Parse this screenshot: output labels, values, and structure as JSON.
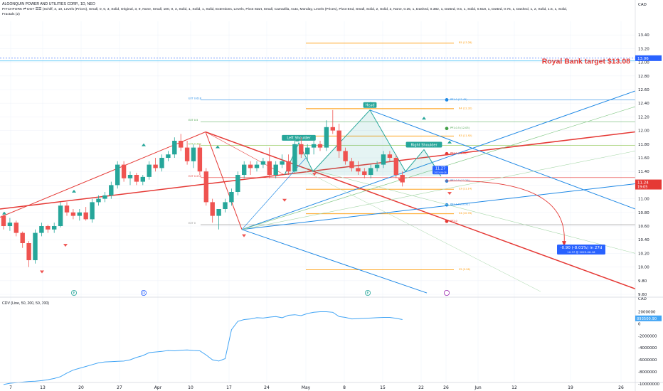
{
  "header": {
    "title": "ALGONQUIN POWER AND UTILITIES CORP., 1D, NEO",
    "indicator_line1": "PITCHFORK ⇄ DGT ☰☰ (Schiff, 3, 10, Levels (Prices), Small, 0, 0, 3, Solid, Original, 3, 9, None, Small, 100, 0, 3, Solid, 1, Solid, 1, Solid, Extentions, Levels, Pivot Start, Small, Camarilla, Auto, Monday, Levels (Prices), Pivot End, Small, Solid, 2, Solid, 2, None, 0.25, 1, Dashed, 0.382, 1, Dotted, 0.5, 1, Solid, 0.618, 1, Dotted, 0.75, 1, Dashed, 1, 2, Solid, 1.5, 1, Solid,",
    "indicator_line2": "Fractals (2)",
    "currency": "CAD",
    "sub_currency": "CAD"
  },
  "annotations": {
    "target_text": "Royal Bank target $13.08",
    "target_price_tag": "13.06",
    "last_price_tag": "11.24",
    "last_price_countdown": "19:05",
    "cursor_price": "11.27",
    "cursor_date": "2023-06-26",
    "measure_line1": "-0.90 (-8.01%) in 27d",
    "measure_line2": "10.37 @ 2023-06-16",
    "cdv_price_tag": "893500.90",
    "pattern_labels": [
      "Left Shoulder",
      "Head",
      "Right Shoulder"
    ],
    "event_markers": [
      "E",
      "D",
      "E"
    ]
  },
  "level_labels": [
    "EXT 0.618",
    "EXT 0.5",
    "EXT 0.382",
    "EXT 0.236",
    "EXT 0",
    "R5 (13.28)",
    "R4 (12.32)",
    "R3 (11.92)",
    "S3 (11.14)",
    "S4 (10.78)",
    "S5 (9.96)",
    "PP1.0 (12.45)",
    "PP1.0.5 (12.03)",
    "PP1.0 (11.66)",
    "PP1.0.5 (11.26)",
    "PP1.1.0 (10.91)",
    "PP2.0"
  ],
  "sub_pane": {
    "label": "CDV (Line, 50, 200, 50, 200)"
  },
  "chart_data": [
    {
      "type": "candlestick",
      "title": "ALGONQUIN POWER AND UTILITIES CORP., 1D, NEO",
      "ylabel": "CAD",
      "ylim": [
        9.6,
        13.6
      ],
      "y_ticks": [
        9.6,
        9.8,
        10.0,
        10.2,
        10.4,
        10.6,
        10.8,
        11.0,
        11.2,
        11.4,
        11.6,
        11.8,
        12.0,
        12.2,
        12.4,
        12.6,
        12.8,
        13.0,
        13.2,
        13.4
      ],
      "x_ticks": [
        "7",
        "13",
        "20",
        "27",
        "Apr",
        "10",
        "17",
        "24",
        "May",
        "8",
        "15",
        "22",
        "26",
        "Jun",
        "12",
        "19",
        "26"
      ],
      "candles": [
        [
          10.75,
          10.8,
          10.55,
          10.6
        ],
        [
          10.6,
          10.72,
          10.53,
          10.65
        ],
        [
          10.65,
          10.68,
          10.45,
          10.5
        ],
        [
          10.5,
          10.52,
          10.28,
          10.35
        ],
        [
          10.35,
          10.38,
          10.0,
          10.1
        ],
        [
          10.1,
          10.55,
          10.05,
          10.5
        ],
        [
          10.5,
          10.65,
          10.45,
          10.6
        ],
        [
          10.6,
          10.62,
          10.5,
          10.55
        ],
        [
          10.55,
          10.65,
          10.5,
          10.6
        ],
        [
          10.6,
          10.95,
          10.58,
          10.9
        ],
        [
          10.9,
          10.95,
          10.75,
          10.8
        ],
        [
          10.8,
          10.85,
          10.7,
          10.75
        ],
        [
          10.75,
          10.85,
          10.68,
          10.8
        ],
        [
          10.8,
          10.88,
          10.68,
          10.7
        ],
        [
          10.7,
          11.0,
          10.65,
          10.95
        ],
        [
          10.95,
          11.05,
          10.9,
          11.0
        ],
        [
          11.0,
          11.1,
          10.95,
          11.05
        ],
        [
          11.05,
          11.25,
          11.0,
          11.2
        ],
        [
          11.2,
          11.55,
          11.15,
          11.5
        ],
        [
          11.5,
          11.55,
          11.25,
          11.3
        ],
        [
          11.3,
          11.4,
          11.2,
          11.35
        ],
        [
          11.35,
          11.38,
          11.2,
          11.25
        ],
        [
          11.25,
          11.35,
          11.2,
          11.32
        ],
        [
          11.32,
          11.55,
          11.28,
          11.5
        ],
        [
          11.5,
          11.6,
          11.4,
          11.45
        ],
        [
          11.45,
          11.65,
          11.4,
          11.6
        ],
        [
          11.6,
          11.7,
          11.55,
          11.65
        ],
        [
          11.65,
          11.9,
          11.6,
          11.85
        ],
        [
          11.85,
          11.95,
          11.7,
          11.75
        ],
        [
          11.75,
          11.85,
          11.5,
          11.55
        ],
        [
          11.55,
          11.8,
          11.45,
          11.75
        ],
        [
          11.75,
          11.8,
          11.35,
          11.4
        ],
        [
          11.4,
          11.45,
          10.9,
          10.95
        ],
        [
          10.95,
          11.0,
          10.65,
          10.75
        ],
        [
          10.75,
          10.85,
          10.55,
          10.85
        ],
        [
          10.85,
          11.0,
          10.8,
          10.95
        ],
        [
          10.95,
          11.15,
          10.9,
          11.1
        ],
        [
          11.1,
          11.4,
          11.05,
          11.35
        ],
        [
          11.35,
          11.55,
          11.3,
          11.5
        ],
        [
          11.5,
          11.55,
          11.35,
          11.45
        ],
        [
          11.45,
          11.55,
          11.4,
          11.5
        ],
        [
          11.5,
          11.6,
          11.45,
          11.55
        ],
        [
          11.55,
          11.75,
          11.3,
          11.35
        ],
        [
          11.35,
          11.55,
          11.3,
          11.5
        ],
        [
          11.5,
          11.65,
          11.45,
          11.55
        ],
        [
          11.55,
          11.65,
          11.35,
          11.4
        ],
        [
          11.4,
          11.85,
          11.38,
          11.8
        ],
        [
          11.8,
          11.9,
          11.6,
          11.65
        ],
        [
          11.65,
          11.8,
          11.55,
          11.75
        ],
        [
          11.75,
          11.85,
          11.65,
          11.8
        ],
        [
          11.8,
          11.85,
          11.7,
          11.75
        ],
        [
          11.75,
          12.15,
          11.7,
          12.05
        ],
        [
          12.05,
          12.3,
          11.95,
          12.0
        ],
        [
          12.0,
          12.1,
          11.6,
          11.7
        ],
        [
          11.7,
          11.75,
          11.5,
          11.55
        ],
        [
          11.55,
          11.6,
          11.4,
          11.45
        ],
        [
          11.45,
          11.55,
          11.35,
          11.4
        ],
        [
          11.4,
          11.45,
          11.3,
          11.35
        ],
        [
          11.35,
          11.5,
          11.3,
          11.45
        ],
        [
          11.45,
          11.55,
          11.4,
          11.5
        ],
        [
          11.5,
          11.7,
          11.45,
          11.65
        ],
        [
          11.65,
          11.7,
          11.55,
          11.6
        ],
        [
          11.6,
          11.65,
          11.3,
          11.35
        ],
        [
          11.35,
          11.4,
          11.18,
          11.24
        ]
      ],
      "pivots": [
        11.43,
        11.09,
        10.81,
        10.67,
        10.47,
        10.79,
        11.27,
        12.08,
        11.53
      ],
      "fractal_highs": [
        10.75,
        11.07,
        11.75,
        11.72,
        11.82,
        12.36,
        12.14,
        11.79
      ],
      "fractal_lows": [
        9.98,
        10.37,
        10.51,
        11.03,
        11.41,
        11.33,
        11.13
      ]
    },
    {
      "type": "line",
      "title": "CDV (Line, 50, 200, 50, 200)",
      "ylim": [
        -10000000,
        3000000
      ],
      "y_ticks": [
        2000000,
        0,
        -2000000,
        -4000000,
        -6000000,
        -8000000,
        -10000000
      ],
      "values": [
        -10100000,
        -9900000,
        -9800000,
        -9700000,
        -9600000,
        -9550000,
        -9450000,
        -9300000,
        -9100000,
        -8800000,
        -8200000,
        -7700000,
        -7400000,
        -7100000,
        -6800000,
        -6500000,
        -6350000,
        -6300000,
        -6250000,
        -6200000,
        -6000000,
        -5600000,
        -5300000,
        -4800000,
        -4700000,
        -4600000,
        -4450000,
        -4500000,
        -4400000,
        -4350000,
        -4450000,
        -4500000,
        -5200000,
        -6000000,
        -6200000,
        -5800000,
        -1000000,
        400000,
        700000,
        800000,
        1000000,
        950000,
        1100000,
        1200000,
        1000000,
        1400000,
        1500000,
        1350000,
        1700000,
        1900000,
        2000000,
        2000000,
        1900000,
        1200000,
        1050000,
        800000,
        850000,
        900000,
        950000,
        1000000,
        1050000,
        1050000,
        900000,
        700000
      ]
    }
  ]
}
